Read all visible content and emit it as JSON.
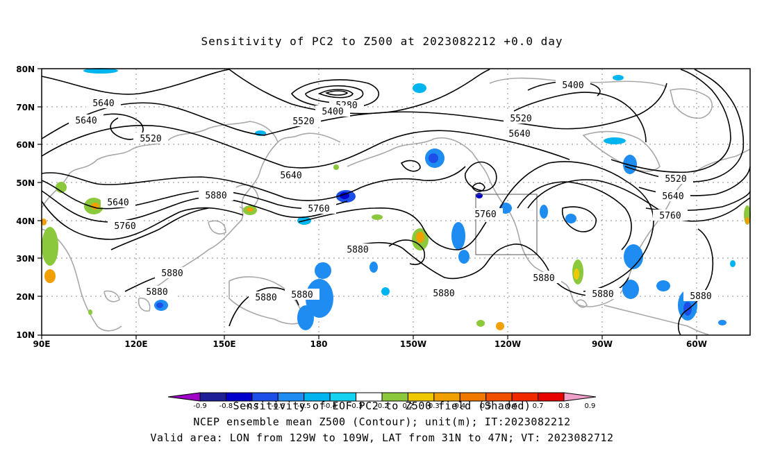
{
  "title": "Sensitivity of PC2 to Z500 at 2023082212 +0.0 day",
  "axes": {
    "lat_ticks": [
      "80N",
      "70N",
      "60N",
      "50N",
      "40N",
      "30N",
      "20N",
      "10N"
    ],
    "lon_ticks": [
      "90E",
      "120E",
      "150E",
      "180",
      "150W",
      "120W",
      "90W",
      "60W"
    ]
  },
  "contours": {
    "labels": [
      "5640",
      "5640",
      "5520",
      "5280",
      "5400",
      "5520",
      "5520",
      "5640",
      "5400",
      "5640",
      "5640",
      "5880",
      "5760",
      "5760",
      "5760",
      "5880",
      "5880",
      "5880",
      "5880",
      "5640",
      "5520",
      "5640",
      "5760",
      "5880",
      "5880",
      "5880"
    ]
  },
  "colorbar": {
    "ticks": [
      "-0.9",
      "-0.8",
      "-0.7",
      "-0.6",
      "-0.5",
      "-0.4",
      "-0.3",
      "-0.2",
      "0.2",
      "0.3",
      "0.4",
      "0.5",
      "0.6",
      "0.7",
      "0.8",
      "0.9"
    ],
    "colors": [
      "#a000c8",
      "#1e1e96",
      "#0000cd",
      "#1c4fe8",
      "#1e8cf0",
      "#00b4f0",
      "#14d2f0",
      "#ffffff",
      "#8cc83c",
      "#f0c800",
      "#f0a000",
      "#f07800",
      "#f05000",
      "#f02800",
      "#e60000",
      "#f0a0c8"
    ]
  },
  "captions": {
    "line1": "Sensitivity of EOF PC2 to Z500 field (Shaded)",
    "line2": "NCEP ensemble mean Z500 (Contour); unit(m); IT:2023082212",
    "line3": "Valid area: LON from 129W to 109W, LAT from 31N to 47N; VT: 2023082712"
  }
}
